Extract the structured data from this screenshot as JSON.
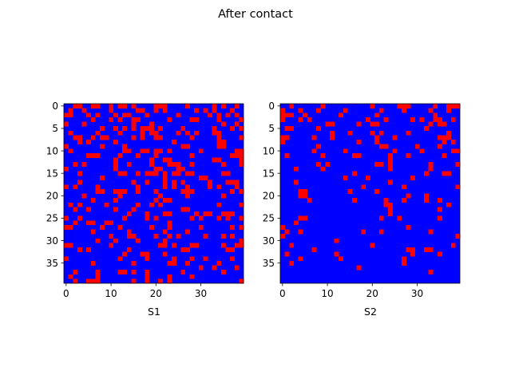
{
  "figure": {
    "title": "After contact"
  },
  "chart_data": [
    {
      "type": "heatmap",
      "xlabel": "S1",
      "ylabel": "",
      "xlim": [
        -0.5,
        39.5
      ],
      "ylim": [
        39.5,
        -0.5
      ],
      "xticks": [
        0,
        10,
        20,
        30
      ],
      "yticks": [
        0,
        5,
        10,
        15,
        20,
        25,
        30,
        35
      ],
      "grid": false,
      "colors": {
        "0": "#0000ff",
        "1": "#ff0000"
      },
      "values": [
        "0011001100101101000011100001000001010010",
        "0100100000100000110010100000010101000100",
        "1100010100010110001000000100000010101010",
        "0000001000101001100000010000110000100001",
        "1000100000000001000100000000000000010010",
        "0000000010010101011101000010000001000101",
        "0100000100001000010110000101010001100000",
        "0011001011000001010011000000100000100001",
        "0001010000010000000000001000000000110000",
        "1000000010000100000000000011000000110000",
        "0100000000000110011011010000001000000011",
        "0000011100001000100010000000100000000111",
        "0000000000010000000100110000000001100001",
        "0010100000010010000100011100100000010001",
        "1000000000010000000011000110000000000000",
        "0001000000001100101110101101100000011000",
        "0000000010000000000000100000001100000000",
        "0001000000000001001000101010000010001110",
        "1010000100000000100000101001000010100010",
        "0000000110011100100010000011100000000101",
        "0000100000001000000001000001000000010000",
        "0000001000010000000010110000000000000000",
        "0101000001000000100101000000000000100001",
        "0010010000010001000000000011000000000000",
        "0000000000000010001000110000010110011100",
        "1001000000000100001010000000101000101001",
        "0010011001100000000000010000000000000000",
        "1100000010001000000100010000001000000101",
        "0000001000000010000000100001000000000000",
        "0000000000100011000010010100000100010100",
        "0000000100010000100000100000000000000001",
        "1100000000100000000001101000110000010011",
        "0001010000000010000000000011000000001100",
        "0000000000000100011000100000000000000000",
        "1000000000001000001000001000100100000100",
        "0000001000000001000000011001000000100000",
        "0000000000000000000000000000001001000010",
        "0010000100001101001000000010000000010000",
        "0100000100000000001000010000100000000000",
        "0010011100000001001001010000000000000001"
      ]
    },
    {
      "type": "heatmap",
      "xlabel": "S2",
      "ylabel": "",
      "xlim": [
        -0.5,
        39.5
      ],
      "ylim": [
        39.5,
        -0.5
      ],
      "xticks": [
        0,
        10,
        20,
        30
      ],
      "yticks": [
        0,
        5,
        10,
        15,
        20,
        25,
        30,
        35
      ],
      "grid": false,
      "colors": {
        "0": "#0000ff",
        "1": "#ff0000"
      },
      "values": [
        "0010000001000000000010000011100000100111",
        "1000100010000010000000100001000001000100",
        "1110010000000100000001000000000000100000",
        "1000101000000000000100010000010100110010",
        "0000000000110000010011000000000001011000",
        "0110000010000000000000000000000010000000",
        "0000000000010001000010100000100000000100",
        "1100000100010000000001000100000000011100",
        "1000000000000000010001000000000000001010",
        "0000000010000000000000110000001000010000",
        "0000000100000010000000000100000100000011",
        "0100000001000000110000001000100000001000",
        "0000000000000000000000001000000000000000",
        "0000000010100000000001101000000001000001",
        "0001000001000000000000001000000001000000",
        "0000000000000000100000000000000010001100",
        "0000000000000010000100000000010000000000",
        "0001000000000000000000001000000000000000",
        "0000000000000000001000000001000000000001",
        "0000110000000001000001000000000000000000",
        "0000110000000000000000000000100010000000",
        "0000001000000000100000010001000010010000",
        "0000000000000000000000011000000000000100",
        "0000000000000000000000001000000000010000",
        "0000000000000000000000001000000000000000",
        "0000110000000000000000100010000000010000",
        "0001000000000000000000000000000000000000",
        "1000000000000000000000000000100000000000",
        "0100100000000000001000100000000001000000",
        "1000000000000000000000000000000000000001",
        "0000000000001000000000000000000000000000",
        "0010000000000000000010000000000000000010",
        "0000000100000000000000000000110011000000",
        "0100000000001000000000000000010000010000",
        "0000100000000100000000000001000000000000",
        "0010000000000000000000000001000000000000",
        "0000000000000000010000000000000000000000",
        "0000000000000000000000000000000001000000",
        "0000000000000000000000000000000000000000",
        "0000000000000000000000000000000000000000"
      ]
    }
  ]
}
